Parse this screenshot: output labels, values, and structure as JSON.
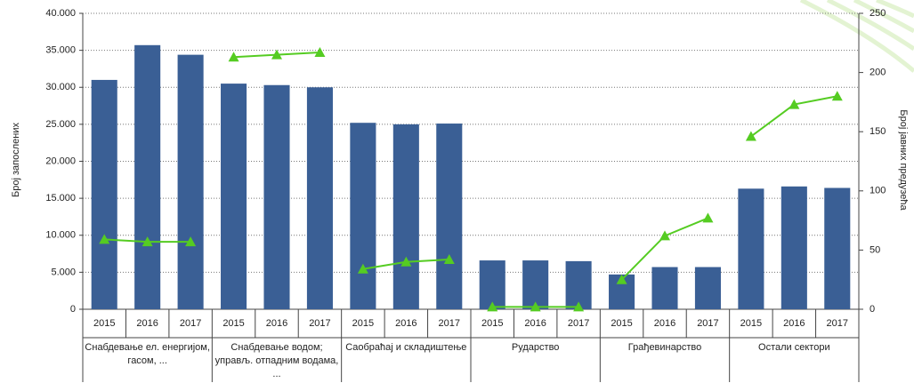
{
  "chart_data": {
    "type": "bar",
    "y_label": "Број запослених",
    "y2_label": "Број јавних предузећа",
    "groups": [
      {
        "label": "Снабдевање ел. енергијом, гасом, ...",
        "categories": [
          "2015",
          "2016",
          "2017"
        ]
      },
      {
        "label": "Снабдевање водом; управљ. отпадним водама, ...",
        "categories": [
          "2015",
          "2016",
          "2017"
        ]
      },
      {
        "label": "Саобраћај и складиштење",
        "categories": [
          "2015",
          "2016",
          "2017"
        ]
      },
      {
        "label": "Рударство",
        "categories": [
          "2015",
          "2016",
          "2017"
        ]
      },
      {
        "label": "Грађевинарство",
        "categories": [
          "2015",
          "2016",
          "2017"
        ]
      },
      {
        "label": "Остали сектори",
        "categories": [
          "2015",
          "2016",
          "2017"
        ]
      }
    ],
    "series": [
      {
        "type": "bar",
        "color": "#3a5f95",
        "axis": "y",
        "values": [
          31000,
          35700,
          34400,
          30500,
          30300,
          30000,
          25200,
          25000,
          25100,
          6600,
          6600,
          6500,
          4700,
          5700,
          5700,
          16300,
          16600,
          16400
        ]
      },
      {
        "type": "line",
        "color": "#55cc22",
        "axis": "y2",
        "values": [
          59,
          57,
          57,
          213,
          215,
          217,
          34,
          40,
          42,
          2,
          2,
          2,
          25,
          62,
          77,
          146,
          173,
          180
        ]
      }
    ],
    "ylim": [
      0,
      40000
    ],
    "yticks": [
      0,
      {
        "value": 5000,
        "label": "5.000"
      },
      {
        "value": 10000,
        "label": "10.000"
      },
      {
        "value": 15000,
        "label": "15.000"
      },
      {
        "value": 20000,
        "label": "20.000"
      },
      {
        "value": 25000,
        "label": "25.000"
      },
      {
        "value": 30000,
        "label": "30.000"
      },
      {
        "value": 35000,
        "label": "35.000"
      },
      {
        "value": 40000,
        "label": "40.000"
      }
    ],
    "y2lim": [
      0,
      250
    ],
    "y2ticks": [
      0,
      50,
      100,
      150,
      200,
      250
    ],
    "grid": true
  }
}
